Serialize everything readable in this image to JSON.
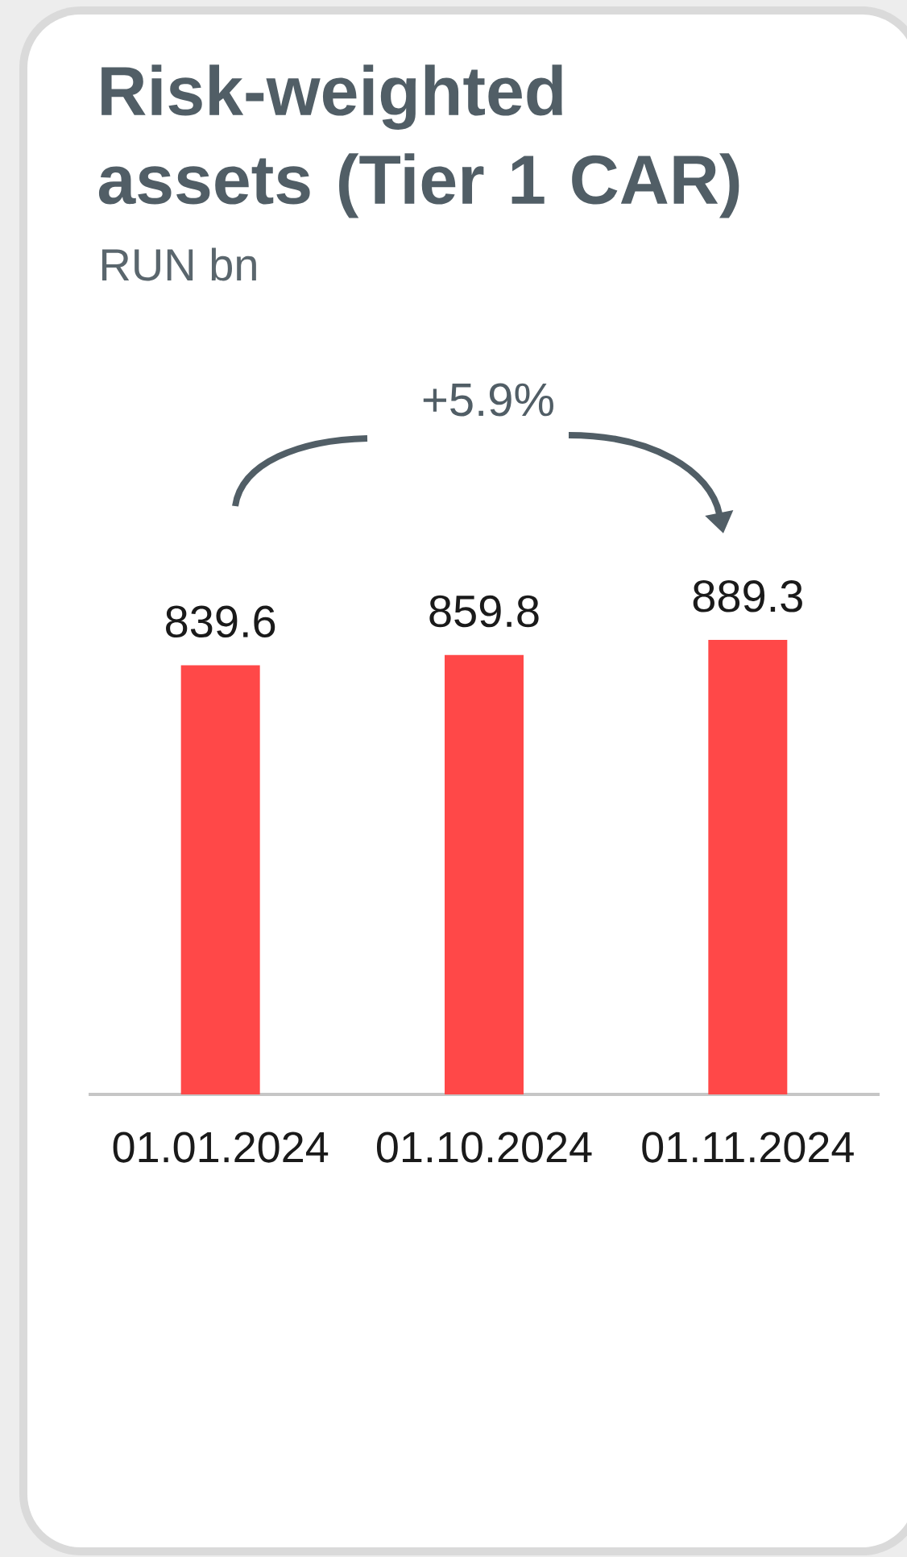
{
  "chart_data": {
    "type": "bar",
    "title": "Risk-weighted assets (Tier 1 CAR)",
    "subtitle": "RUN bn",
    "categories": [
      "01.01.2024",
      "01.10.2024",
      "01.11.2024"
    ],
    "values": [
      839.6,
      859.8,
      889.3
    ],
    "color": "#ff4848",
    "data_labels": true,
    "annotations": [
      "+5.9%"
    ]
  }
}
